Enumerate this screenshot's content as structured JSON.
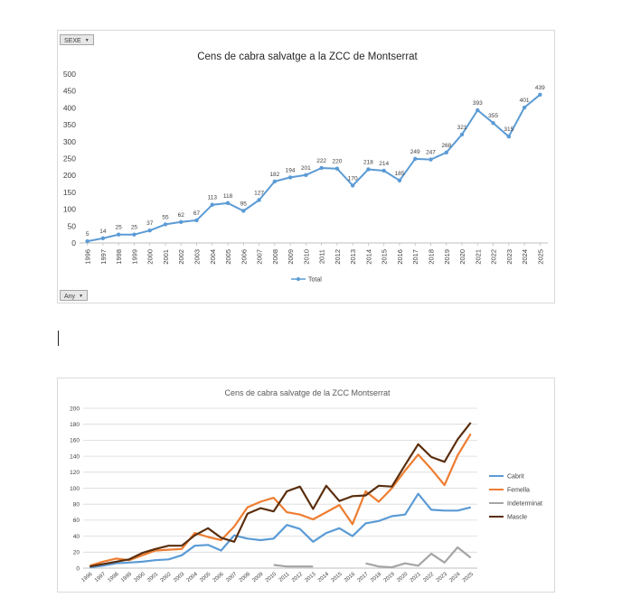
{
  "filters": {
    "sexe_label": "SEXE",
    "any_label": "Any"
  },
  "chart_data": [
    {
      "type": "line",
      "title": "Cens de cabra salvatge a la ZCC de Montserrat",
      "xlabel": "",
      "ylabel": "",
      "ylim": [
        0,
        500
      ],
      "yticks": [
        0,
        50,
        100,
        150,
        200,
        250,
        300,
        350,
        400,
        450,
        500
      ],
      "x": [
        "1996",
        "1997",
        "1998",
        "1999",
        "2000",
        "2001",
        "2002",
        "2003",
        "2004",
        "2005",
        "2006",
        "2007",
        "2008",
        "2009",
        "2010",
        "2011",
        "2012",
        "2013",
        "2014",
        "2015",
        "2016",
        "2017",
        "2018",
        "2019",
        "2020",
        "2021",
        "2022",
        "2023",
        "2024",
        "2025"
      ],
      "series": [
        {
          "name": "Total",
          "color": "#5b9bd5",
          "values": [
            5,
            14,
            25,
            25,
            37,
            55,
            62,
            67,
            113,
            118,
            95,
            127,
            182,
            194,
            201,
            222,
            220,
            170,
            218,
            214,
            185,
            249,
            247,
            268,
            321,
            393,
            355,
            315,
            401,
            439
          ]
        }
      ],
      "legend": "bottom",
      "data_labels": true
    },
    {
      "type": "line",
      "title": "Cens de cabra salvatge de la ZCC Montserrat",
      "xlabel": "",
      "ylabel": "",
      "ylim": [
        0,
        200
      ],
      "yticks": [
        0,
        20,
        40,
        60,
        80,
        100,
        120,
        140,
        160,
        180,
        200
      ],
      "grid": true,
      "x": [
        "1996",
        "1997",
        "1998",
        "1999",
        "2000",
        "2001",
        "2002",
        "2003",
        "2004",
        "2005",
        "2006",
        "2007",
        "2008",
        "2009",
        "2010",
        "2011",
        "2012",
        "2013",
        "2014",
        "2015",
        "2016",
        "2017",
        "2018",
        "2019",
        "2020",
        "2021",
        "2022",
        "2023",
        "2024",
        "2025"
      ],
      "series": [
        {
          "name": "Cabrit",
          "color": "#5b9bd5",
          "values": [
            1,
            3,
            6,
            7,
            8,
            10,
            11,
            16,
            28,
            29,
            22,
            41,
            37,
            35,
            37,
            54,
            49,
            33,
            44,
            50,
            40,
            56,
            59,
            65,
            67,
            93,
            73,
            72,
            72,
            76
          ]
        },
        {
          "name": "Femella",
          "color": "#ed7d31",
          "values": [
            3,
            8,
            12,
            10,
            16,
            22,
            23,
            24,
            44,
            39,
            35,
            52,
            76,
            83,
            88,
            70,
            67,
            61,
            70,
            79,
            55,
            96,
            83,
            100,
            122,
            142,
            124,
            104,
            141,
            168
          ]
        },
        {
          "name": "Indeterminat",
          "color": "#a5a5a5",
          "values": [
            null,
            null,
            null,
            null,
            null,
            null,
            null,
            null,
            null,
            null,
            null,
            null,
            null,
            null,
            4,
            2,
            2,
            2,
            null,
            null,
            null,
            6,
            2,
            1,
            6,
            3,
            18,
            7,
            26,
            13
          ]
        },
        {
          "name": "Mascle",
          "color": "#5a2e0e",
          "values": [
            2,
            5,
            8,
            11,
            19,
            24,
            28,
            28,
            41,
            50,
            38,
            33,
            68,
            75,
            71,
            96,
            102,
            74,
            103,
            84,
            90,
            91,
            103,
            102,
            129,
            155,
            139,
            133,
            161,
            182
          ]
        }
      ],
      "legend": "right",
      "data_labels": false
    }
  ]
}
